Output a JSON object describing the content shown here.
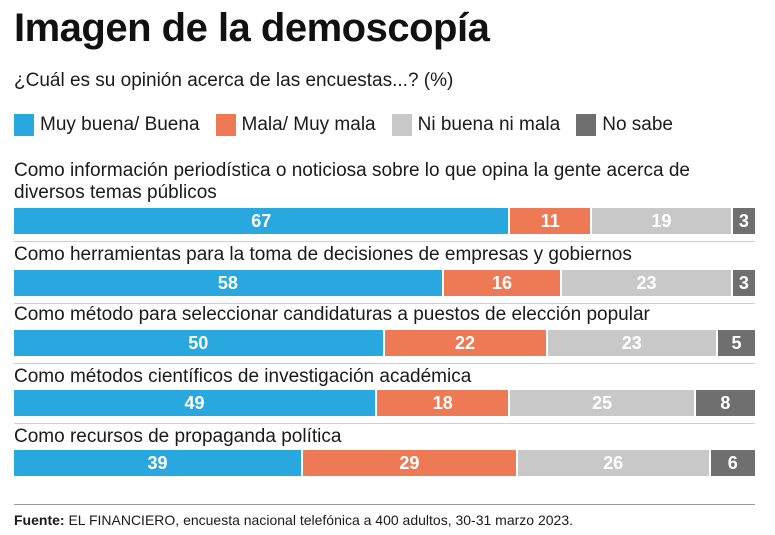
{
  "title": "Imagen de la demoscopía",
  "subtitle": "¿Cuál es su opinión acerca de las encuestas...? (%)",
  "source_label": "Fuente:",
  "source_text": "EL FINANCIERO, encuesta nacional telefónica a 400 adultos, 30-31 marzo 2023.",
  "colors": {
    "muy_buena": "#29a8e0",
    "mala": "#ee7a55",
    "ni": "#c8c8c8",
    "no_sabe": "#6f6f6f"
  },
  "chart_data": {
    "type": "bar",
    "orientation": "horizontal",
    "stacked": true,
    "unit": "%",
    "legend_position": "top",
    "categories": [
      "Como información periodística o noticiosa sobre lo que opina la gente acerca de diversos temas públicos",
      "Como herramientas para la toma de decisiones de empresas y gobiernos",
      "Como método para seleccionar candidaturas a puestos de elección popular",
      "Como métodos científicos de investigación académica",
      "Como recursos de propaganda política"
    ],
    "series": [
      {
        "name": "Muy buena/ Buena",
        "color": "#29a8e0",
        "values": [
          67,
          58,
          50,
          49,
          39
        ]
      },
      {
        "name": "Mala/ Muy mala",
        "color": "#ee7a55",
        "values": [
          11,
          16,
          22,
          18,
          29
        ]
      },
      {
        "name": "Ni buena ni mala",
        "color": "#c8c8c8",
        "values": [
          19,
          23,
          23,
          25,
          26
        ]
      },
      {
        "name": "No sabe",
        "color": "#6f6f6f",
        "values": [
          3,
          3,
          5,
          8,
          6
        ]
      }
    ]
  }
}
